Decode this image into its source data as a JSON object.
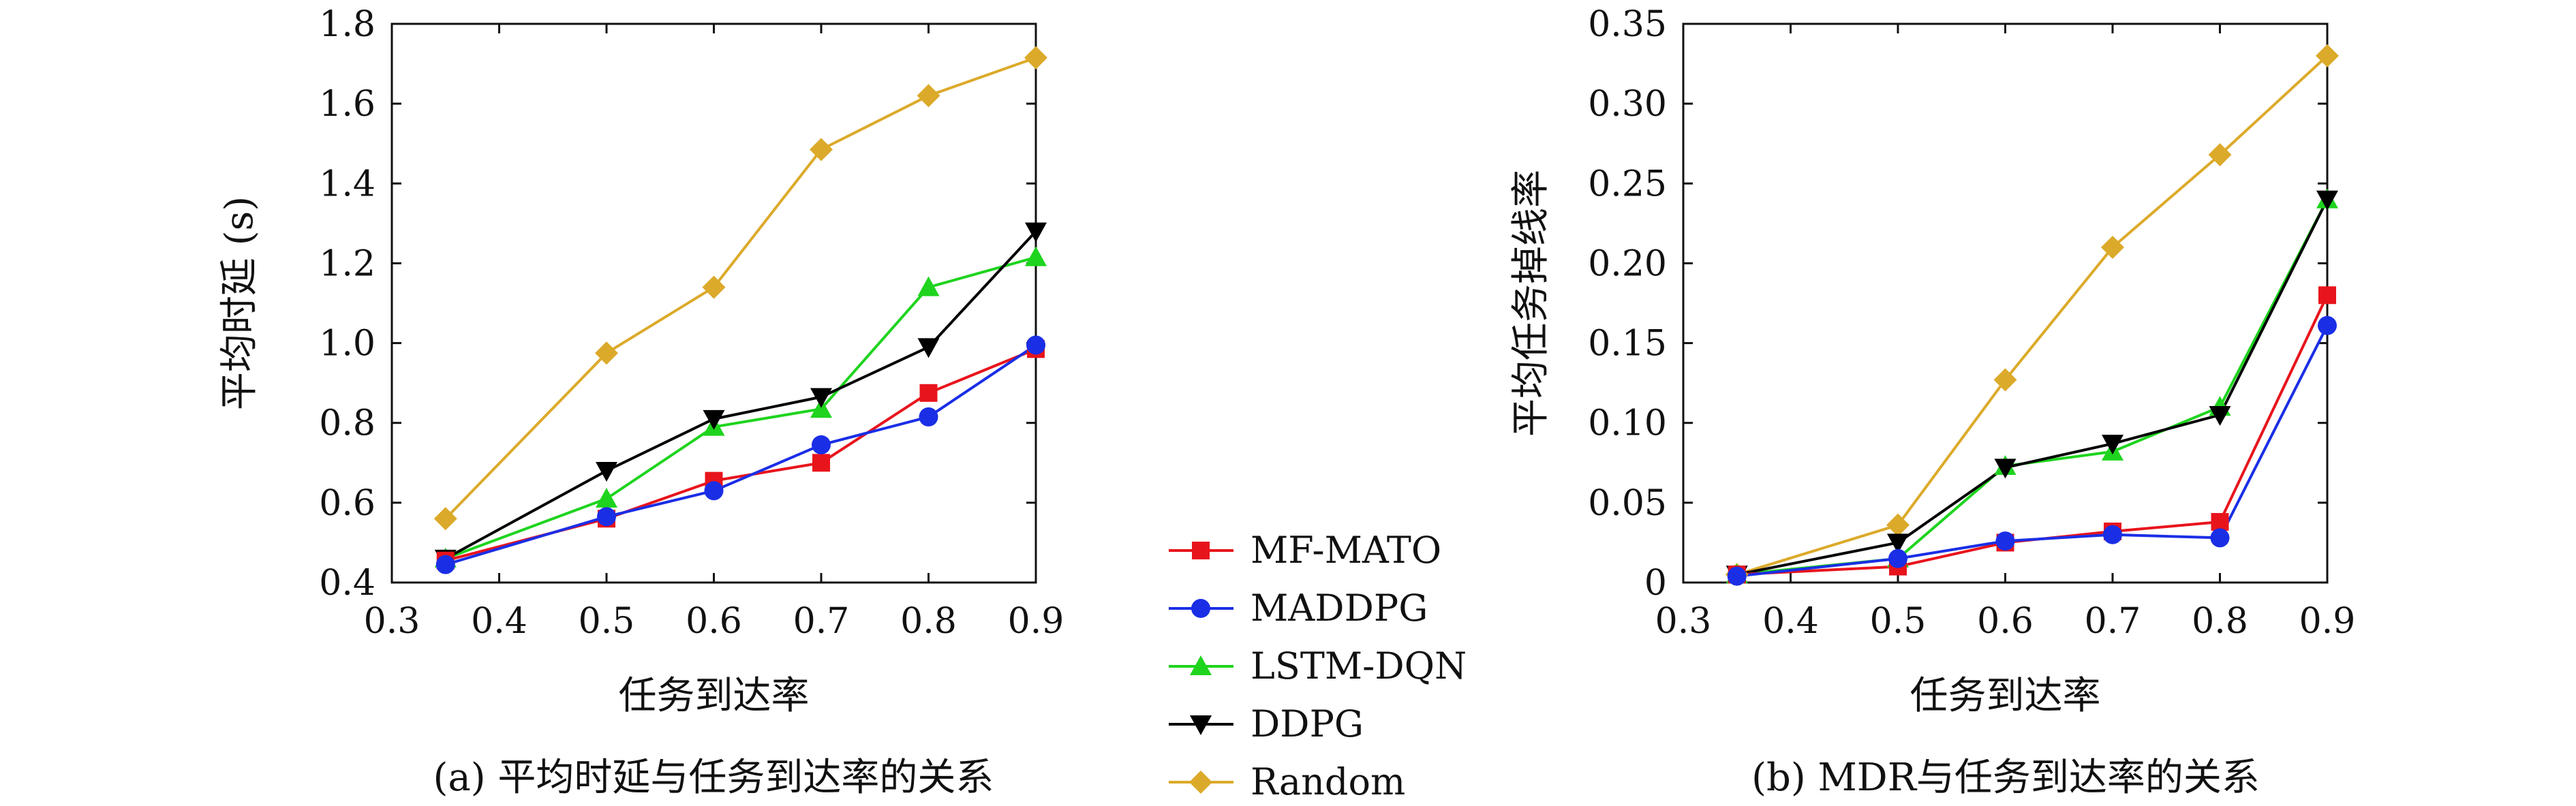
{
  "chart_data": [
    {
      "type": "line",
      "caption": "(a) 平均时延与任务到达率的关系",
      "xlabel": "任务到达率",
      "ylabel": "平均时延 (s)",
      "xlim": [
        0.3,
        0.9
      ],
      "ylim": [
        0.4,
        1.8
      ],
      "x_ticks": [
        "0.3",
        "0.4",
        "0.5",
        "0.6",
        "0.7",
        "0.8",
        "0.9"
      ],
      "y_ticks": [
        "0.4",
        "0.6",
        "0.8",
        "1.0",
        "1.2",
        "1.4",
        "1.6",
        "1.8"
      ],
      "x": [
        0.35,
        0.5,
        0.6,
        0.7,
        0.8,
        0.9
      ],
      "series": [
        {
          "name": "MF-MATO",
          "values": [
            0.455,
            0.56,
            0.655,
            0.7,
            0.875,
            0.985
          ]
        },
        {
          "name": "MADDPG",
          "values": [
            0.445,
            0.565,
            0.63,
            0.745,
            0.815,
            0.995
          ]
        },
        {
          "name": "LSTM-DQN",
          "values": [
            0.46,
            0.61,
            0.79,
            0.835,
            1.14,
            1.215
          ]
        },
        {
          "name": "DDPG",
          "values": [
            0.46,
            0.68,
            0.81,
            0.865,
            0.99,
            1.28
          ]
        },
        {
          "name": "Random",
          "values": [
            0.56,
            0.975,
            1.14,
            1.485,
            1.62,
            1.715
          ]
        }
      ]
    },
    {
      "type": "line",
      "caption": "(b) MDR与任务到达率的关系",
      "xlabel": "任务到达率",
      "ylabel": "平均任务掉线率",
      "xlim": [
        0.3,
        0.9
      ],
      "ylim": [
        0,
        0.35
      ],
      "x_ticks": [
        "0.3",
        "0.4",
        "0.5",
        "0.6",
        "0.7",
        "0.8",
        "0.9"
      ],
      "y_ticks": [
        "0",
        "0.05",
        "0.10",
        "0.15",
        "0.20",
        "0.25",
        "0.30",
        "0.35"
      ],
      "x": [
        0.35,
        0.5,
        0.6,
        0.7,
        0.8,
        0.9
      ],
      "series": [
        {
          "name": "MF-MATO",
          "values": [
            0.005,
            0.01,
            0.025,
            0.032,
            0.038,
            0.18
          ]
        },
        {
          "name": "MADDPG",
          "values": [
            0.004,
            0.015,
            0.026,
            0.03,
            0.028,
            0.161
          ]
        },
        {
          "name": "LSTM-DQN",
          "values": [
            0.005,
            0.015,
            0.073,
            0.082,
            0.11,
            0.24
          ]
        },
        {
          "name": "DDPG",
          "values": [
            0.005,
            0.025,
            0.072,
            0.087,
            0.105,
            0.24
          ]
        },
        {
          "name": "Random",
          "values": [
            0.005,
            0.036,
            0.127,
            0.21,
            0.268,
            0.33
          ]
        }
      ]
    }
  ],
  "legend": [
    {
      "name": "MF-MATO",
      "color": "#e8141c",
      "marker": "square"
    },
    {
      "name": "MADDPG",
      "color": "#1a2ee6",
      "marker": "circle"
    },
    {
      "name": "LSTM-DQN",
      "color": "#1ed41e",
      "marker": "triangle-up"
    },
    {
      "name": "DDPG",
      "color": "#000000",
      "marker": "triangle-down"
    },
    {
      "name": "Random",
      "color": "#dcaa2a",
      "marker": "diamond"
    }
  ]
}
